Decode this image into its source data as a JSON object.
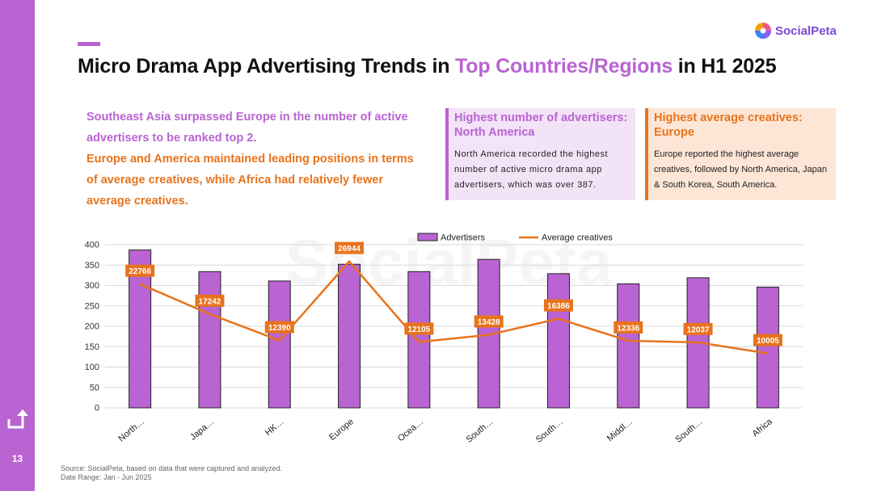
{
  "page": {
    "number": "13",
    "title_part1": "Micro Drama App Advertising Trends in ",
    "title_highlight": "Top Countries/Regions",
    "title_part2": " in H1 2025",
    "logo_text": "SocialPeta",
    "watermark_text": "SocialPeta"
  },
  "summary": {
    "para1": "Southeast Asia surpassed Europe in the number of active advertisers to be ranked top 2.",
    "para2": "Europe and America maintained leading positions in terms of average creatives, while Africa had relatively fewer average creatives."
  },
  "cards": [
    {
      "title": "Highest number of advertisers: North America",
      "text": "North America recorded the highest number of active micro drama app advertisers, which was over 387."
    },
    {
      "title": "Highest average creatives: Europe",
      "text": "Europe reported the highest average creatives, followed by North America, Japan & South Korea, South America."
    }
  ],
  "footer": {
    "source": "Source: SocialPeta, based on data that were captured and analyzed.",
    "date_range": "Date Range: Jan - Jun 2025"
  },
  "colors": {
    "purple": "#b964d2",
    "orange": "#e8731c"
  },
  "chart_data": {
    "type": "bar",
    "title": "",
    "categories": [
      "North…",
      "Japa…",
      "HK…",
      "Europe",
      "Ocea…",
      "South…",
      "South…",
      "Middl…",
      "South…",
      "Africa"
    ],
    "series": [
      {
        "name": "Advertisers",
        "type": "bar",
        "values": [
          387,
          334,
          311,
          352,
          334,
          364,
          329,
          304,
          319,
          296
        ]
      },
      {
        "name": "Average creatives",
        "type": "line",
        "values": [
          22766,
          17242,
          12390,
          26944,
          12105,
          13428,
          16386,
          12336,
          12037,
          10005
        ],
        "labels": [
          "22766",
          "17242",
          "12390",
          "26944",
          "12105",
          "13428",
          "16386",
          "12336",
          "12037",
          "10005"
        ]
      }
    ],
    "yticks": [
      "0",
      "50",
      "100",
      "150",
      "200",
      "250",
      "300",
      "350",
      "400"
    ],
    "ylim": [
      0,
      400
    ],
    "line_ylim": [
      0,
      30000
    ],
    "legend": "top-center",
    "grid": true
  }
}
